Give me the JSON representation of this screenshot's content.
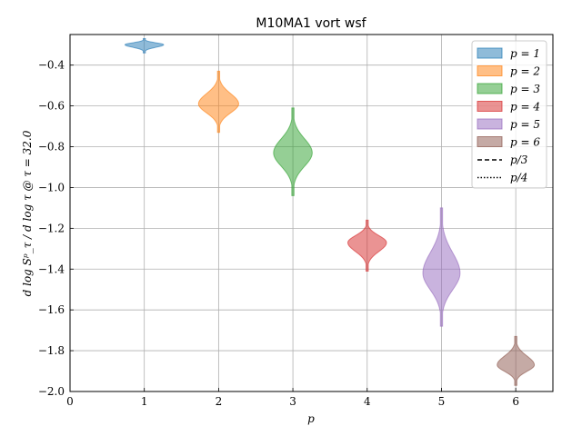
{
  "chart_data": {
    "type": "violin",
    "title": "M10MA1 vort wsf",
    "xlabel": "p",
    "ylabel": "d log Sᵖ_τ / d log τ @ τ = 32.0",
    "xlim": [
      0,
      6.5
    ],
    "ylim": [
      -2.0,
      -0.25
    ],
    "xticks": [
      0,
      1,
      2,
      3,
      4,
      5,
      6
    ],
    "yticks": [
      -2.0,
      -1.8,
      -1.6,
      -1.4,
      -1.2,
      -1.0,
      -0.8,
      -0.6,
      -0.4
    ],
    "grid": true,
    "legend_position": "upper right",
    "series": [
      {
        "name": "p = 1",
        "p": 1,
        "center": -0.3,
        "min": -0.34,
        "max": -0.27,
        "halfwidth": 0.26,
        "color": "#1f77b4"
      },
      {
        "name": "p = 2",
        "p": 2,
        "center": -0.59,
        "min": -0.73,
        "max": -0.43,
        "halfwidth": 0.27,
        "color": "#ff7f0e"
      },
      {
        "name": "p = 3",
        "p": 3,
        "center": -0.83,
        "min": -1.04,
        "max": -0.61,
        "halfwidth": 0.26,
        "color": "#2ca02c"
      },
      {
        "name": "p = 4",
        "p": 4,
        "center": -1.27,
        "min": -1.41,
        "max": -1.16,
        "halfwidth": 0.26,
        "color": "#d62728"
      },
      {
        "name": "p = 5",
        "p": 5,
        "center": -1.42,
        "min": -1.68,
        "max": -1.1,
        "halfwidth": 0.25,
        "color": "#9467bd"
      },
      {
        "name": "p = 6",
        "p": 6,
        "center": -1.87,
        "min": -1.97,
        "max": -1.73,
        "halfwidth": 0.25,
        "color": "#8c564b"
      }
    ],
    "reference_lines": [
      {
        "name": "p/3",
        "style": "dashed"
      },
      {
        "name": "p/4",
        "style": "dotted"
      }
    ]
  }
}
